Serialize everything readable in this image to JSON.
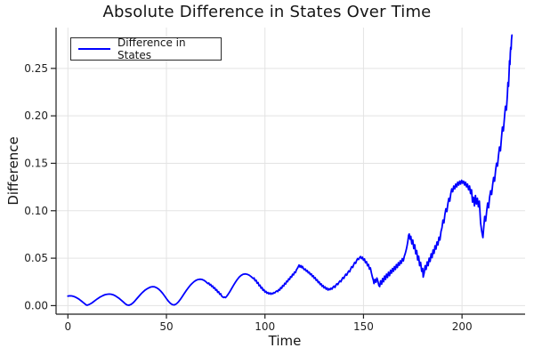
{
  "chart_data": {
    "type": "line",
    "title": "Absolute Difference in States Over Time",
    "xlabel": "Time",
    "ylabel": "Difference",
    "legend_label": "Difference in States",
    "legend_position": "top-left",
    "grid": true,
    "colors": {
      "line": "#0000ff",
      "grid": "#e3e3e3",
      "axis": "#1f1f1f",
      "text": "#1f1f1f",
      "background": "#ffffff"
    },
    "xlim": [
      -6,
      232
    ],
    "ylim": [
      -0.009,
      0.293
    ],
    "xticks": [
      0,
      50,
      100,
      150,
      200
    ],
    "xtick_labels": [
      "0",
      "50",
      "100",
      "150",
      "200"
    ],
    "yticks": [
      0,
      0.05,
      0.1,
      0.15,
      0.2,
      0.25
    ],
    "ytick_labels": [
      "0.00",
      "0.05",
      "0.10",
      "0.15",
      "0.20",
      "0.25"
    ],
    "points": [
      [
        0,
        0.01
      ],
      [
        1,
        0.0103
      ],
      [
        2,
        0.0102
      ],
      [
        3,
        0.0097
      ],
      [
        4,
        0.0088
      ],
      [
        5,
        0.0076
      ],
      [
        6,
        0.0062
      ],
      [
        7,
        0.0046
      ],
      [
        8,
        0.0029
      ],
      [
        9,
        0.0012
      ],
      [
        9.5,
        0.0005
      ],
      [
        10,
        0.0006
      ],
      [
        11,
        0.0014
      ],
      [
        12,
        0.0026
      ],
      [
        13,
        0.0041
      ],
      [
        14,
        0.0057
      ],
      [
        15,
        0.0072
      ],
      [
        16,
        0.0086
      ],
      [
        17,
        0.0098
      ],
      [
        18,
        0.0108
      ],
      [
        19,
        0.0116
      ],
      [
        20,
        0.012
      ],
      [
        21,
        0.0122
      ],
      [
        22,
        0.012
      ],
      [
        23,
        0.0114
      ],
      [
        24,
        0.0104
      ],
      [
        25,
        0.0091
      ],
      [
        26,
        0.0076
      ],
      [
        27,
        0.0058
      ],
      [
        28,
        0.004
      ],
      [
        29,
        0.0022
      ],
      [
        30,
        0.0008
      ],
      [
        31,
        0.0004
      ],
      [
        32,
        0.0012
      ],
      [
        33,
        0.0028
      ],
      [
        34,
        0.005
      ],
      [
        35,
        0.0074
      ],
      [
        36,
        0.0098
      ],
      [
        37,
        0.0121
      ],
      [
        38,
        0.0142
      ],
      [
        39,
        0.016
      ],
      [
        40,
        0.0175
      ],
      [
        41,
        0.0187
      ],
      [
        42,
        0.0196
      ],
      [
        43,
        0.02
      ],
      [
        44,
        0.0198
      ],
      [
        45,
        0.0189
      ],
      [
        46,
        0.0175
      ],
      [
        47,
        0.0155
      ],
      [
        48,
        0.0131
      ],
      [
        49,
        0.0103
      ],
      [
        50,
        0.0074
      ],
      [
        51,
        0.0047
      ],
      [
        52,
        0.0025
      ],
      [
        53,
        0.0011
      ],
      [
        54,
        0.0008
      ],
      [
        55,
        0.0018
      ],
      [
        56,
        0.0038
      ],
      [
        57,
        0.0064
      ],
      [
        58,
        0.0094
      ],
      [
        59,
        0.0126
      ],
      [
        60,
        0.0157
      ],
      [
        61,
        0.0186
      ],
      [
        62,
        0.0212
      ],
      [
        63,
        0.0234
      ],
      [
        64,
        0.0252
      ],
      [
        65,
        0.0266
      ],
      [
        66,
        0.0275
      ],
      [
        67,
        0.0279
      ],
      [
        68,
        0.0276
      ],
      [
        69,
        0.0267
      ],
      [
        70,
        0.0252
      ],
      [
        71,
        0.0233
      ],
      [
        71.5,
        0.0238
      ],
      [
        72,
        0.0218
      ],
      [
        72.5,
        0.0223
      ],
      [
        73,
        0.0201
      ],
      [
        73.5,
        0.0207
      ],
      [
        74,
        0.0183
      ],
      [
        74.5,
        0.0189
      ],
      [
        75,
        0.0162
      ],
      [
        75.5,
        0.0168
      ],
      [
        76,
        0.0141
      ],
      [
        76.5,
        0.0147
      ],
      [
        77,
        0.012
      ],
      [
        77.5,
        0.0126
      ],
      [
        78,
        0.0101
      ],
      [
        78.5,
        0.0092
      ],
      [
        79,
        0.0085
      ],
      [
        79.5,
        0.0091
      ],
      [
        80,
        0.0084
      ],
      [
        80.5,
        0.0096
      ],
      [
        81,
        0.011
      ],
      [
        82,
        0.0142
      ],
      [
        83,
        0.0177
      ],
      [
        84,
        0.0213
      ],
      [
        85,
        0.0247
      ],
      [
        86,
        0.0277
      ],
      [
        87,
        0.0302
      ],
      [
        88,
        0.032
      ],
      [
        89,
        0.0331
      ],
      [
        90,
        0.0334
      ],
      [
        91,
        0.033
      ],
      [
        92,
        0.0321
      ],
      [
        93,
        0.0306
      ],
      [
        94,
        0.0286
      ],
      [
        94.5,
        0.0292
      ],
      [
        95,
        0.0262
      ],
      [
        95.5,
        0.0268
      ],
      [
        96,
        0.0236
      ],
      [
        96.5,
        0.0243
      ],
      [
        97,
        0.0209
      ],
      [
        97.5,
        0.0216
      ],
      [
        98,
        0.0184
      ],
      [
        98.5,
        0.0191
      ],
      [
        99,
        0.0161
      ],
      [
        99.5,
        0.0168
      ],
      [
        100,
        0.0143
      ],
      [
        100.5,
        0.0151
      ],
      [
        101,
        0.013
      ],
      [
        101.5,
        0.0139
      ],
      [
        102,
        0.0123
      ],
      [
        102.5,
        0.0134
      ],
      [
        103,
        0.012
      ],
      [
        103.5,
        0.0131
      ],
      [
        104,
        0.0125
      ],
      [
        104.5,
        0.0138
      ],
      [
        105,
        0.0134
      ],
      [
        105.5,
        0.0148
      ],
      [
        106,
        0.0155
      ],
      [
        106.5,
        0.0147
      ],
      [
        107,
        0.017
      ],
      [
        107.5,
        0.0163
      ],
      [
        108,
        0.019
      ],
      [
        108.5,
        0.0183
      ],
      [
        109,
        0.0212
      ],
      [
        109.5,
        0.0205
      ],
      [
        110,
        0.0235
      ],
      [
        110.5,
        0.0228
      ],
      [
        111,
        0.0258
      ],
      [
        111.5,
        0.0252
      ],
      [
        112,
        0.0282
      ],
      [
        112.5,
        0.0276
      ],
      [
        113,
        0.0306
      ],
      [
        113.5,
        0.03
      ],
      [
        114,
        0.033
      ],
      [
        114.5,
        0.0324
      ],
      [
        115,
        0.0354
      ],
      [
        115.5,
        0.0348
      ],
      [
        116,
        0.0378
      ],
      [
        116.5,
        0.0395
      ],
      [
        117,
        0.0415
      ],
      [
        117.3,
        0.0428
      ],
      [
        117.8,
        0.0406
      ],
      [
        118.2,
        0.0422
      ],
      [
        118.7,
        0.04
      ],
      [
        119,
        0.0414
      ],
      [
        119.5,
        0.0392
      ],
      [
        120,
        0.0378
      ],
      [
        120.5,
        0.0386
      ],
      [
        121,
        0.0362
      ],
      [
        121.5,
        0.037
      ],
      [
        122,
        0.0345
      ],
      [
        122.5,
        0.0353
      ],
      [
        123,
        0.0327
      ],
      [
        123.5,
        0.0335
      ],
      [
        124,
        0.0307
      ],
      [
        124.5,
        0.0315
      ],
      [
        125,
        0.0287
      ],
      [
        125.5,
        0.0295
      ],
      [
        126,
        0.0265
      ],
      [
        126.5,
        0.0273
      ],
      [
        127,
        0.0243
      ],
      [
        127.5,
        0.0251
      ],
      [
        128,
        0.0222
      ],
      [
        128.5,
        0.0231
      ],
      [
        129,
        0.0203
      ],
      [
        129.5,
        0.0213
      ],
      [
        130,
        0.0187
      ],
      [
        130.5,
        0.0198
      ],
      [
        131,
        0.0174
      ],
      [
        131.5,
        0.0186
      ],
      [
        132,
        0.0163
      ],
      [
        132.5,
        0.0178
      ],
      [
        133,
        0.0168
      ],
      [
        133.5,
        0.0184
      ],
      [
        134,
        0.0174
      ],
      [
        134.5,
        0.0193
      ],
      [
        135,
        0.0205
      ],
      [
        135.5,
        0.0191
      ],
      [
        136,
        0.0216
      ],
      [
        136.5,
        0.0231
      ],
      [
        137,
        0.0221
      ],
      [
        137.5,
        0.0246
      ],
      [
        138,
        0.0261
      ],
      [
        138.5,
        0.0251
      ],
      [
        139,
        0.0276
      ],
      [
        139.5,
        0.0296
      ],
      [
        140,
        0.0286
      ],
      [
        140.5,
        0.0311
      ],
      [
        141,
        0.0331
      ],
      [
        141.5,
        0.0321
      ],
      [
        142,
        0.0346
      ],
      [
        142.5,
        0.0366
      ],
      [
        143,
        0.0356
      ],
      [
        143.5,
        0.0386
      ],
      [
        144,
        0.0411
      ],
      [
        144.5,
        0.0401
      ],
      [
        145,
        0.0431
      ],
      [
        145.5,
        0.0456
      ],
      [
        146,
        0.0446
      ],
      [
        146.5,
        0.0476
      ],
      [
        147,
        0.0496
      ],
      [
        147.5,
        0.0486
      ],
      [
        148,
        0.0506
      ],
      [
        148.5,
        0.0518
      ],
      [
        149,
        0.0495
      ],
      [
        149.5,
        0.051
      ],
      [
        150,
        0.0478
      ],
      [
        150.5,
        0.0492
      ],
      [
        151,
        0.0452
      ],
      [
        151.5,
        0.0464
      ],
      [
        152,
        0.042
      ],
      [
        152.5,
        0.0434
      ],
      [
        153,
        0.0385
      ],
      [
        153.5,
        0.0398
      ],
      [
        154,
        0.0345
      ],
      [
        154.5,
        0.0302
      ],
      [
        155,
        0.0268
      ],
      [
        155.3,
        0.0233
      ],
      [
        155.8,
        0.0277
      ],
      [
        156.3,
        0.0246
      ],
      [
        156.8,
        0.0291
      ],
      [
        157.3,
        0.0257
      ],
      [
        157.8,
        0.0212
      ],
      [
        158.2,
        0.0201
      ],
      [
        158.7,
        0.0262
      ],
      [
        159.2,
        0.0226
      ],
      [
        159.7,
        0.0286
      ],
      [
        160.2,
        0.0251
      ],
      [
        160.7,
        0.0312
      ],
      [
        161.2,
        0.0276
      ],
      [
        161.7,
        0.0332
      ],
      [
        162.2,
        0.0296
      ],
      [
        162.7,
        0.0352
      ],
      [
        163.2,
        0.0316
      ],
      [
        163.7,
        0.0372
      ],
      [
        164.2,
        0.0341
      ],
      [
        164.7,
        0.0392
      ],
      [
        165.2,
        0.0361
      ],
      [
        165.7,
        0.0412
      ],
      [
        166.2,
        0.0381
      ],
      [
        166.7,
        0.0432
      ],
      [
        167.2,
        0.0401
      ],
      [
        167.7,
        0.0452
      ],
      [
        168.2,
        0.0426
      ],
      [
        168.7,
        0.0472
      ],
      [
        169.2,
        0.0446
      ],
      [
        169.7,
        0.0496
      ],
      [
        170.2,
        0.0471
      ],
      [
        170.7,
        0.0521
      ],
      [
        171.2,
        0.0551
      ],
      [
        171.7,
        0.0591
      ],
      [
        172.1,
        0.0631
      ],
      [
        172.5,
        0.0681
      ],
      [
        172.9,
        0.0741
      ],
      [
        173.2,
        0.0755
      ],
      [
        173.6,
        0.0701
      ],
      [
        174,
        0.0731
      ],
      [
        174.5,
        0.0651
      ],
      [
        175,
        0.0691
      ],
      [
        175.5,
        0.0601
      ],
      [
        176,
        0.0641
      ],
      [
        176.5,
        0.0546
      ],
      [
        177,
        0.0581
      ],
      [
        177.5,
        0.0481
      ],
      [
        178,
        0.0521
      ],
      [
        178.5,
        0.0421
      ],
      [
        179,
        0.0456
      ],
      [
        179.5,
        0.0361
      ],
      [
        180,
        0.0391
      ],
      [
        180.3,
        0.0301
      ],
      [
        180.8,
        0.0346
      ],
      [
        181.3,
        0.0421
      ],
      [
        181.8,
        0.0381
      ],
      [
        182.3,
        0.0461
      ],
      [
        182.8,
        0.0421
      ],
      [
        183.3,
        0.0501
      ],
      [
        183.8,
        0.0466
      ],
      [
        184.3,
        0.0546
      ],
      [
        184.8,
        0.0506
      ],
      [
        185.3,
        0.0586
      ],
      [
        185.8,
        0.0551
      ],
      [
        186.3,
        0.0631
      ],
      [
        186.8,
        0.0596
      ],
      [
        187.3,
        0.0671
      ],
      [
        187.8,
        0.0641
      ],
      [
        188.3,
        0.0721
      ],
      [
        188.8,
        0.0691
      ],
      [
        189.3,
        0.0781
      ],
      [
        189.8,
        0.0821
      ],
      [
        190.3,
        0.0901
      ],
      [
        190.8,
        0.0871
      ],
      [
        191.3,
        0.0961
      ],
      [
        191.8,
        0.1021
      ],
      [
        192.3,
        0.0991
      ],
      [
        192.8,
        0.1071
      ],
      [
        193.3,
        0.1131
      ],
      [
        193.8,
        0.1101
      ],
      [
        194.3,
        0.1181
      ],
      [
        194.8,
        0.1231
      ],
      [
        195.3,
        0.1201
      ],
      [
        195.8,
        0.1261
      ],
      [
        196.3,
        0.1231
      ],
      [
        196.8,
        0.1281
      ],
      [
        197.3,
        0.1251
      ],
      [
        197.8,
        0.1301
      ],
      [
        198.3,
        0.1271
      ],
      [
        198.8,
        0.1311
      ],
      [
        199.3,
        0.1281
      ],
      [
        199.8,
        0.1321
      ],
      [
        200.3,
        0.1291
      ],
      [
        200.8,
        0.1311
      ],
      [
        201.3,
        0.1271
      ],
      [
        201.8,
        0.1301
      ],
      [
        202.3,
        0.1251
      ],
      [
        202.8,
        0.1281
      ],
      [
        203.3,
        0.1221
      ],
      [
        203.8,
        0.1261
      ],
      [
        204.3,
        0.1181
      ],
      [
        204.8,
        0.1221
      ],
      [
        205.3,
        0.1091
      ],
      [
        205.8,
        0.1141
      ],
      [
        206.3,
        0.1051
      ],
      [
        206.8,
        0.1161
      ],
      [
        207.3,
        0.1071
      ],
      [
        207.8,
        0.1131
      ],
      [
        208.3,
        0.1041
      ],
      [
        208.8,
        0.1101
      ],
      [
        209.4,
        0.0871
      ],
      [
        210,
        0.0781
      ],
      [
        210.6,
        0.0717
      ],
      [
        211,
        0.0821
      ],
      [
        211.5,
        0.0941
      ],
      [
        212,
        0.0891
      ],
      [
        212.5,
        0.0991
      ],
      [
        213,
        0.1081
      ],
      [
        213.5,
        0.1031
      ],
      [
        214,
        0.1141
      ],
      [
        214.5,
        0.1211
      ],
      [
        215,
        0.1171
      ],
      [
        215.5,
        0.1271
      ],
      [
        216,
        0.1351
      ],
      [
        216.5,
        0.1311
      ],
      [
        217,
        0.1421
      ],
      [
        217.5,
        0.1501
      ],
      [
        218,
        0.1471
      ],
      [
        218.5,
        0.1581
      ],
      [
        219,
        0.1671
      ],
      [
        219.5,
        0.1631
      ],
      [
        220,
        0.1761
      ],
      [
        220.5,
        0.1881
      ],
      [
        221,
        0.1841
      ],
      [
        221.5,
        0.1981
      ],
      [
        222,
        0.2101
      ],
      [
        222.5,
        0.2061
      ],
      [
        223,
        0.2221
      ],
      [
        223.3,
        0.2351
      ],
      [
        223.6,
        0.2311
      ],
      [
        223.9,
        0.2481
      ],
      [
        224.1,
        0.2581
      ],
      [
        224.3,
        0.2541
      ],
      [
        224.5,
        0.2661
      ],
      [
        224.7,
        0.2721
      ],
      [
        224.9,
        0.2701
      ],
      [
        225.1,
        0.2801
      ],
      [
        225.3,
        0.2851
      ]
    ]
  }
}
